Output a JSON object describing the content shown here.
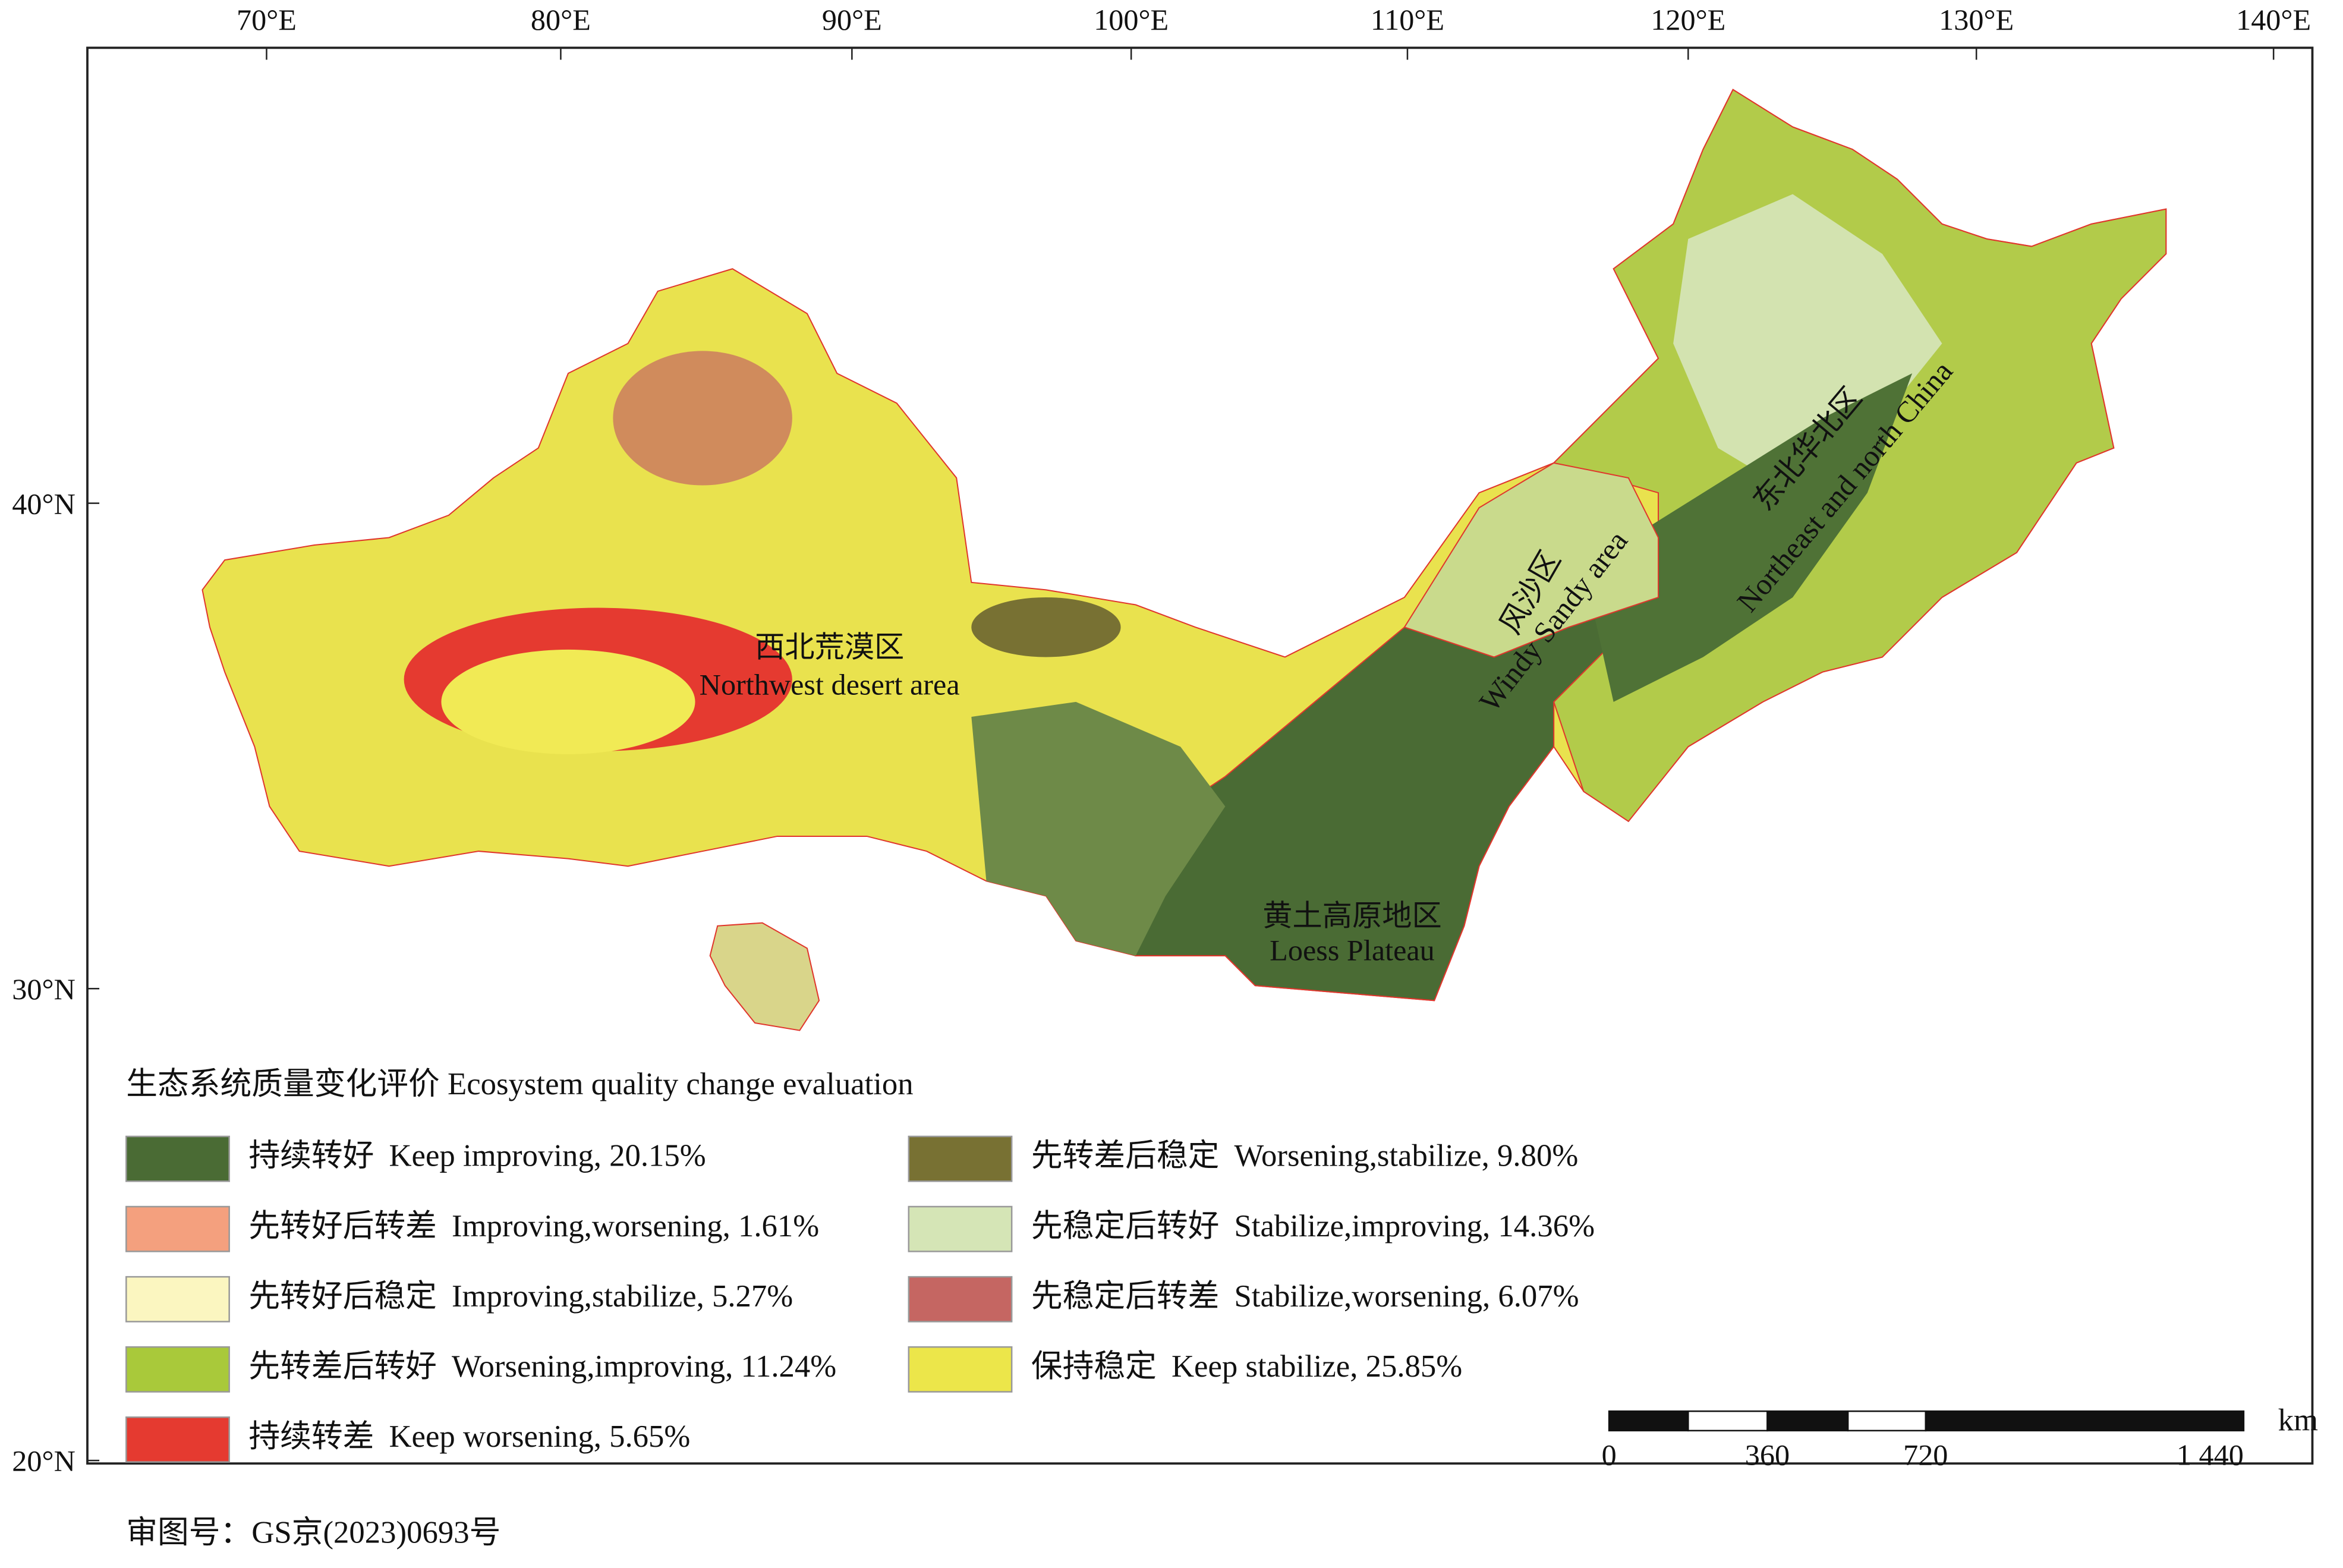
{
  "frame": {
    "longitude_ticks": [
      "70°E",
      "80°E",
      "90°E",
      "100°E",
      "110°E",
      "120°E",
      "130°E",
      "140°E"
    ],
    "latitude_ticks": [
      "40°N",
      "30°N",
      "20°N"
    ]
  },
  "regions": [
    {
      "name_zh": "西北荒漠区",
      "name_en": "Northwest desert area"
    },
    {
      "name_zh": "风沙区",
      "name_en": "Windy Sandy area"
    },
    {
      "name_zh": "东北华北区",
      "name_en": "Northeast and north China"
    },
    {
      "name_zh": "黄土高原地区",
      "name_en": "Loess Plateau"
    }
  ],
  "legend": {
    "title": "生态系统质量变化评价 Ecosystem quality change evaluation",
    "items": [
      {
        "label_zh": "持续转好",
        "label_en": "Keep improving, 20.15%",
        "color": "#4a6b34"
      },
      {
        "label_zh": "先转好后转差",
        "label_en": "Improving,worsening, 1.61%",
        "color": "#f4a07e"
      },
      {
        "label_zh": "先转好后稳定",
        "label_en": "Improving,stabilize, 5.27%",
        "color": "#fbf6c0"
      },
      {
        "label_zh": "先转差后转好",
        "label_en": "Worsening,improving, 11.24%",
        "color": "#a9c93a"
      },
      {
        "label_zh": "持续转差",
        "label_en": "Keep worsening, 5.65%",
        "color": "#e53a30"
      },
      {
        "label_zh": "先转差后稳定",
        "label_en": "Worsening,stabilize, 9.80%",
        "color": "#787133"
      },
      {
        "label_zh": "先稳定后转好",
        "label_en": "Stabilize,improving, 14.36%",
        "color": "#d5e5b6"
      },
      {
        "label_zh": "先稳定后转差",
        "label_en": "Stabilize,worsening, 6.07%",
        "color": "#c56662"
      },
      {
        "label_zh": "保持稳定",
        "label_en": "Keep stabilize, 25.85%",
        "color": "#ece64a"
      }
    ]
  },
  "scale_bar": {
    "unit": "km",
    "labels": [
      "0",
      "360",
      "720",
      "1 440"
    ]
  },
  "footnote": "审图号：GS京(2023)0693号"
}
